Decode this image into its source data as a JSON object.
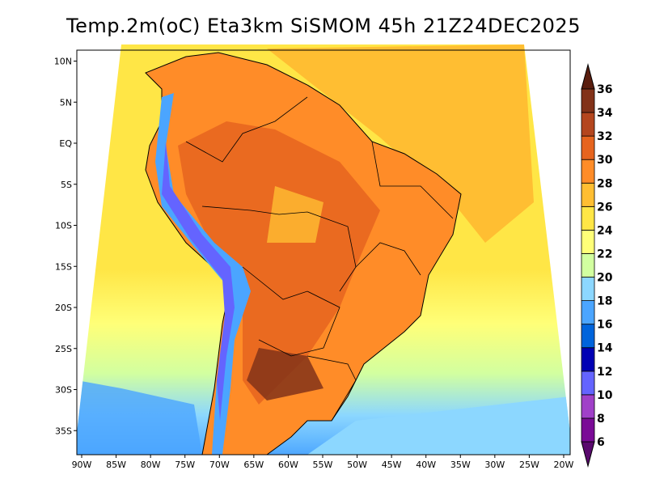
{
  "title": "Temp.2m(oC) Eta3km SiSMOM 45h 21Z24DEC2025",
  "axes": {
    "lon_labels": [
      "90W",
      "85W",
      "80W",
      "75W",
      "70W",
      "65W",
      "60W",
      "55W",
      "50W",
      "45W",
      "40W",
      "35W",
      "30W",
      "25W",
      "20W"
    ],
    "lon_values": [
      -90,
      -85,
      -80,
      -75,
      -70,
      -65,
      -60,
      -55,
      -50,
      -45,
      -40,
      -35,
      -30,
      -25,
      -20
    ],
    "lat_labels": [
      "10N",
      "5N",
      "EQ",
      "5S",
      "10S",
      "15S",
      "20S",
      "25S",
      "30S",
      "35S"
    ],
    "lat_values": [
      10,
      5,
      0,
      -5,
      -10,
      -15,
      -20,
      -25,
      -30,
      -35
    ]
  },
  "colorbar": {
    "levels": [
      "6",
      "8",
      "10",
      "12",
      "14",
      "16",
      "18",
      "20",
      "22",
      "24",
      "26",
      "28",
      "30",
      "32",
      "34",
      "36"
    ],
    "colors": [
      "#5a0a6e",
      "#7a0a96",
      "#a040c8",
      "#6464ff",
      "#0000b4",
      "#0064dc",
      "#4ba5ff",
      "#8cd7ff",
      "#d2ffa0",
      "#ffff78",
      "#ffe646",
      "#ffbe32",
      "#ff8c28",
      "#e6641e",
      "#b4461e",
      "#823219",
      "#5a1e0f"
    ]
  }
}
